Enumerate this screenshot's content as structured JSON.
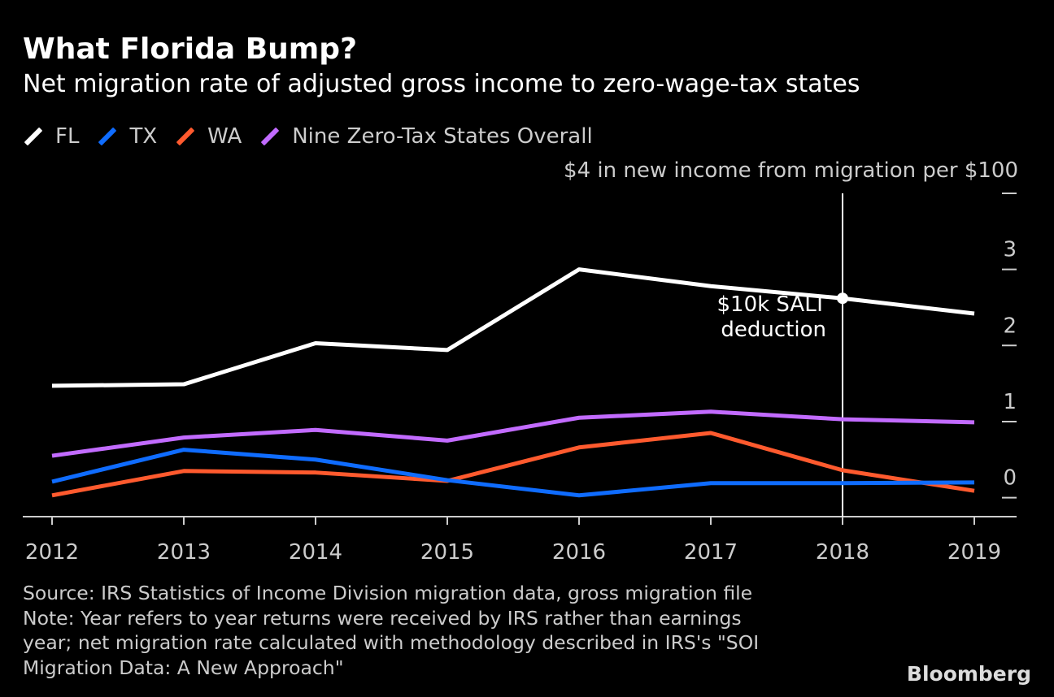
{
  "title": "What Florida Bump?",
  "subtitle": "Net migration rate of adjusted gross income to zero-wage-tax states",
  "unit_label": "$4 in new income from migration per $100",
  "footnote": {
    "source": "Source: IRS Statistics of Income Division migration data, gross migration file",
    "note_line1": "Note: Year refers to year returns were received by IRS rather than earnings",
    "note_line2": "year; net migration rate calculated with methodology described in IRS's \"SOI",
    "note_line3": "Migration Data: A New Approach\""
  },
  "brand": "Bloomberg",
  "annotation": {
    "line1": "$10k SALT",
    "line2": "deduction",
    "x": 2018
  },
  "chart_data": {
    "type": "line",
    "x": [
      2012,
      2013,
      2014,
      2015,
      2016,
      2017,
      2018,
      2019
    ],
    "x_tick_labels": [
      "2012",
      "2013",
      "2014",
      "2015",
      "2016",
      "2017",
      "2018",
      "2019"
    ],
    "y_ticks": [
      0,
      1,
      2,
      3,
      4
    ],
    "y_tick_labels": [
      "0",
      "1",
      "2",
      "3",
      ""
    ],
    "ylim": [
      -0.25,
      4
    ],
    "grid": false,
    "legend_position": "top-left",
    "series": [
      {
        "name": "FL",
        "color": "#ffffff",
        "values": [
          1.47,
          1.49,
          2.03,
          1.94,
          3.0,
          2.78,
          2.62,
          2.42
        ]
      },
      {
        "name": "TX",
        "color": "#0f6cff",
        "values": [
          0.21,
          0.63,
          0.5,
          0.23,
          0.03,
          0.19,
          0.19,
          0.2
        ]
      },
      {
        "name": "WA",
        "color": "#ff5a2e",
        "values": [
          0.03,
          0.35,
          0.33,
          0.22,
          0.66,
          0.85,
          0.36,
          0.09
        ]
      },
      {
        "name": "Nine Zero-Tax States Overall",
        "color": "#c26bff",
        "values": [
          0.55,
          0.79,
          0.89,
          0.75,
          1.05,
          1.13,
          1.03,
          0.99
        ]
      }
    ]
  }
}
